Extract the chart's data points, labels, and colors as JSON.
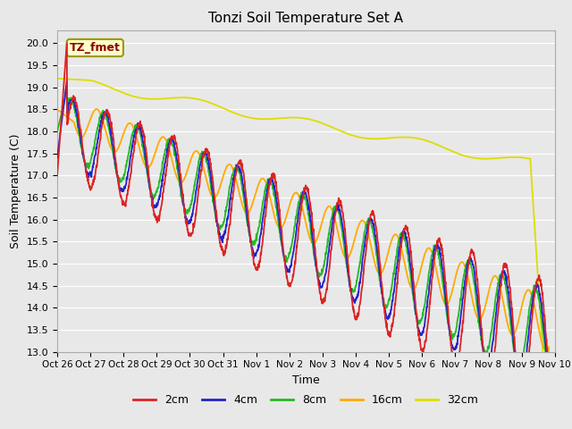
{
  "title": "Tonzi Soil Temperature Set A",
  "xlabel": "Time",
  "ylabel": "Soil Temperature (C)",
  "ylim": [
    13.0,
    20.3
  ],
  "yticks": [
    13.0,
    13.5,
    14.0,
    14.5,
    15.0,
    15.5,
    16.0,
    16.5,
    17.0,
    17.5,
    18.0,
    18.5,
    19.0,
    19.5,
    20.0
  ],
  "x_tick_labels": [
    "Oct 26",
    "Oct 27",
    "Oct 28",
    "Oct 29",
    "Oct 30",
    "Oct 31",
    "Nov 1",
    "Nov 2",
    "Nov 3",
    "Nov 4",
    "Nov 5",
    "Nov 6",
    "Nov 7",
    "Nov 8",
    "Nov 9",
    "Nov 10"
  ],
  "colors": {
    "2cm": "#dd2222",
    "4cm": "#2222cc",
    "8cm": "#22bb22",
    "16cm": "#ffaa00",
    "32cm": "#dddd00"
  },
  "legend_labels": [
    "2cm",
    "4cm",
    "8cm",
    "16cm",
    "32cm"
  ],
  "annotation_text": "TZ_fmet",
  "bg_color": "#e8e8e8",
  "n_points": 1500
}
